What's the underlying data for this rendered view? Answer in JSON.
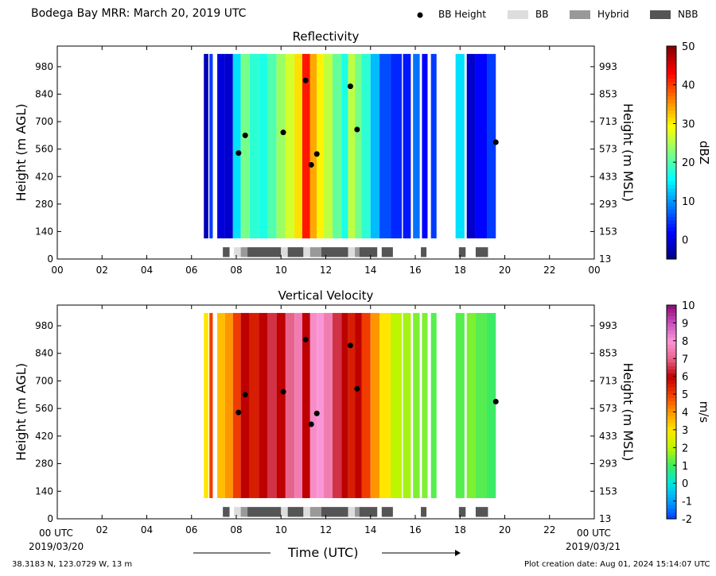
{
  "header": {
    "title": "Bodega Bay MRR:  March 20, 2019 UTC",
    "legend": [
      {
        "label": "BB Height",
        "color": "#000000",
        "marker": "dot"
      },
      {
        "label": "BB",
        "color": "#dddddd",
        "marker": "box"
      },
      {
        "label": "Hybrid",
        "color": "#999999",
        "marker": "box"
      },
      {
        "label": "NBB",
        "color": "#555555",
        "marker": "box"
      }
    ]
  },
  "footer": {
    "location": "38.3183 N, 123.0729 W, 13 m",
    "creation": "Plot creation date: Aug 01, 2024 15:14:07 UTC",
    "xlabel": "Time (UTC)",
    "start_time": "00 UTC",
    "start_date": "2019/03/20",
    "end_time": "00 UTC",
    "end_date": "2019/03/21"
  },
  "chart_data": [
    {
      "type": "heatmap",
      "title": "Reflectivity",
      "ylabel": "Height (m AGL)",
      "y2label": "Height (m MSL)",
      "cbar_label": "dBZ",
      "cbar_ticks": [
        "0",
        "10",
        "20",
        "30",
        "40",
        "50"
      ],
      "cbar_range": [
        -5,
        50
      ],
      "xlim": [
        0,
        24
      ],
      "ylim": [
        0,
        1085
      ],
      "x_ticks": [
        "00",
        "02",
        "04",
        "06",
        "08",
        "10",
        "12",
        "14",
        "16",
        "18",
        "20",
        "22",
        "00"
      ],
      "y_ticks": [
        "0",
        "140",
        "280",
        "420",
        "560",
        "700",
        "840",
        "980"
      ],
      "y2_ticks": [
        "13",
        "153",
        "293",
        "433",
        "573",
        "713",
        "853",
        "993"
      ],
      "bb_height_points": [
        [
          8.1,
          540
        ],
        [
          8.4,
          630
        ],
        [
          10.1,
          645
        ],
        [
          11.1,
          910
        ],
        [
          11.35,
          480
        ],
        [
          11.6,
          535
        ],
        [
          13.1,
          880
        ],
        [
          13.4,
          660
        ],
        [
          19.6,
          595
        ]
      ],
      "bb_type_bars": [
        {
          "start": 7.4,
          "end": 7.7,
          "type": "NBB"
        },
        {
          "start": 7.9,
          "end": 8.2,
          "type": "BB"
        },
        {
          "start": 8.2,
          "end": 8.5,
          "type": "Hybrid"
        },
        {
          "start": 8.5,
          "end": 10.0,
          "type": "NBB"
        },
        {
          "start": 10.0,
          "end": 10.3,
          "type": "BB"
        },
        {
          "start": 10.3,
          "end": 11.0,
          "type": "NBB"
        },
        {
          "start": 11.0,
          "end": 11.3,
          "type": "BB"
        },
        {
          "start": 11.3,
          "end": 11.8,
          "type": "Hybrid"
        },
        {
          "start": 11.8,
          "end": 13.0,
          "type": "NBB"
        },
        {
          "start": 13.0,
          "end": 13.3,
          "type": "BB"
        },
        {
          "start": 13.3,
          "end": 13.5,
          "type": "Hybrid"
        },
        {
          "start": 13.5,
          "end": 14.3,
          "type": "NBB"
        },
        {
          "start": 14.5,
          "end": 15.0,
          "type": "NBB"
        },
        {
          "start": 16.25,
          "end": 16.5,
          "type": "NBB"
        },
        {
          "start": 17.95,
          "end": 18.25,
          "type": "NBB"
        },
        {
          "start": 18.7,
          "end": 19.25,
          "type": "NBB"
        }
      ],
      "column_values": [
        [
          6.55,
          6.75,
          -2
        ],
        [
          6.8,
          6.95,
          5
        ],
        [
          7.15,
          7.5,
          0
        ],
        [
          7.5,
          7.85,
          -1
        ],
        [
          7.85,
          8.2,
          14
        ],
        [
          8.2,
          8.6,
          22
        ],
        [
          8.6,
          9.0,
          18
        ],
        [
          9.0,
          9.4,
          17
        ],
        [
          9.4,
          9.8,
          20
        ],
        [
          9.8,
          10.2,
          24
        ],
        [
          10.2,
          10.6,
          27
        ],
        [
          10.6,
          10.95,
          31
        ],
        [
          10.95,
          11.3,
          42
        ],
        [
          11.3,
          11.6,
          34
        ],
        [
          11.6,
          11.9,
          30
        ],
        [
          11.9,
          12.3,
          26
        ],
        [
          12.3,
          12.7,
          21
        ],
        [
          12.7,
          13.0,
          17
        ],
        [
          13.0,
          13.3,
          26
        ],
        [
          13.3,
          13.6,
          22
        ],
        [
          13.6,
          14.0,
          18
        ],
        [
          14.0,
          14.4,
          12
        ],
        [
          14.4,
          14.9,
          6
        ],
        [
          14.9,
          15.4,
          4
        ],
        [
          15.45,
          15.8,
          3
        ],
        [
          15.9,
          16.2,
          8
        ],
        [
          16.3,
          16.55,
          2
        ],
        [
          16.7,
          16.95,
          5
        ],
        [
          17.8,
          18.2,
          14
        ],
        [
          18.3,
          18.7,
          -1
        ],
        [
          18.7,
          19.2,
          2
        ],
        [
          19.2,
          19.6,
          5
        ]
      ]
    },
    {
      "type": "heatmap",
      "title": "Vertical Velocity",
      "ylabel": "Height (m AGL)",
      "y2label": "Height (m MSL)",
      "cbar_label": "m/s",
      "cbar_ticks": [
        "-2",
        "-1",
        "0",
        "1",
        "2",
        "3",
        "4",
        "5",
        "6",
        "7",
        "8",
        "9",
        "10"
      ],
      "cbar_range": [
        -2,
        10
      ],
      "xlim": [
        0,
        24
      ],
      "ylim": [
        0,
        1085
      ],
      "x_ticks": [
        "",
        "02",
        "04",
        "06",
        "08",
        "10",
        "12",
        "14",
        "16",
        "18",
        "20",
        "22",
        ""
      ],
      "y_ticks": [
        "0",
        "140",
        "280",
        "420",
        "560",
        "700",
        "840",
        "980"
      ],
      "y2_ticks": [
        "13",
        "153",
        "293",
        "433",
        "573",
        "713",
        "853",
        "993"
      ],
      "bb_height_points": [
        [
          8.1,
          540
        ],
        [
          8.4,
          630
        ],
        [
          10.1,
          645
        ],
        [
          11.1,
          910
        ],
        [
          11.35,
          480
        ],
        [
          11.6,
          535
        ],
        [
          13.1,
          880
        ],
        [
          13.4,
          660
        ],
        [
          19.6,
          595
        ]
      ],
      "bb_type_bars": [
        {
          "start": 7.4,
          "end": 7.7,
          "type": "NBB"
        },
        {
          "start": 7.9,
          "end": 8.2,
          "type": "BB"
        },
        {
          "start": 8.2,
          "end": 8.5,
          "type": "Hybrid"
        },
        {
          "start": 8.5,
          "end": 10.0,
          "type": "NBB"
        },
        {
          "start": 10.0,
          "end": 10.3,
          "type": "BB"
        },
        {
          "start": 10.3,
          "end": 11.0,
          "type": "NBB"
        },
        {
          "start": 11.0,
          "end": 11.3,
          "type": "BB"
        },
        {
          "start": 11.3,
          "end": 11.8,
          "type": "Hybrid"
        },
        {
          "start": 11.8,
          "end": 13.0,
          "type": "NBB"
        },
        {
          "start": 13.0,
          "end": 13.3,
          "type": "BB"
        },
        {
          "start": 13.3,
          "end": 13.5,
          "type": "Hybrid"
        },
        {
          "start": 13.5,
          "end": 14.3,
          "type": "NBB"
        },
        {
          "start": 14.5,
          "end": 15.0,
          "type": "NBB"
        },
        {
          "start": 16.25,
          "end": 16.5,
          "type": "NBB"
        },
        {
          "start": 17.95,
          "end": 18.25,
          "type": "NBB"
        },
        {
          "start": 18.7,
          "end": 19.25,
          "type": "NBB"
        }
      ],
      "column_values": [
        [
          6.55,
          6.75,
          3
        ],
        [
          6.8,
          6.95,
          5
        ],
        [
          7.15,
          7.5,
          3.5
        ],
        [
          7.5,
          7.85,
          4
        ],
        [
          7.85,
          8.2,
          5
        ],
        [
          8.2,
          8.6,
          6
        ],
        [
          8.6,
          9.0,
          5.5
        ],
        [
          9.0,
          9.4,
          6
        ],
        [
          9.4,
          9.8,
          6.5
        ],
        [
          9.8,
          10.2,
          6
        ],
        [
          10.2,
          10.6,
          7
        ],
        [
          10.6,
          10.95,
          7.5
        ],
        [
          10.95,
          11.3,
          6
        ],
        [
          11.3,
          11.6,
          7.8
        ],
        [
          11.6,
          11.9,
          8
        ],
        [
          11.9,
          12.3,
          7.5
        ],
        [
          12.3,
          12.7,
          6.5
        ],
        [
          12.7,
          13.0,
          6
        ],
        [
          13.0,
          13.3,
          5.5
        ],
        [
          13.3,
          13.6,
          6
        ],
        [
          13.6,
          14.0,
          5
        ],
        [
          14.0,
          14.4,
          4
        ],
        [
          14.4,
          14.9,
          3
        ],
        [
          14.9,
          15.4,
          2
        ],
        [
          15.45,
          15.8,
          1.8
        ],
        [
          15.9,
          16.2,
          1.5
        ],
        [
          16.3,
          16.55,
          1.5
        ],
        [
          16.7,
          16.95,
          1.2
        ],
        [
          17.8,
          18.2,
          1.2
        ],
        [
          18.3,
          18.7,
          1.5
        ],
        [
          18.7,
          19.2,
          1.2
        ],
        [
          19.2,
          19.6,
          1.0
        ]
      ]
    }
  ]
}
